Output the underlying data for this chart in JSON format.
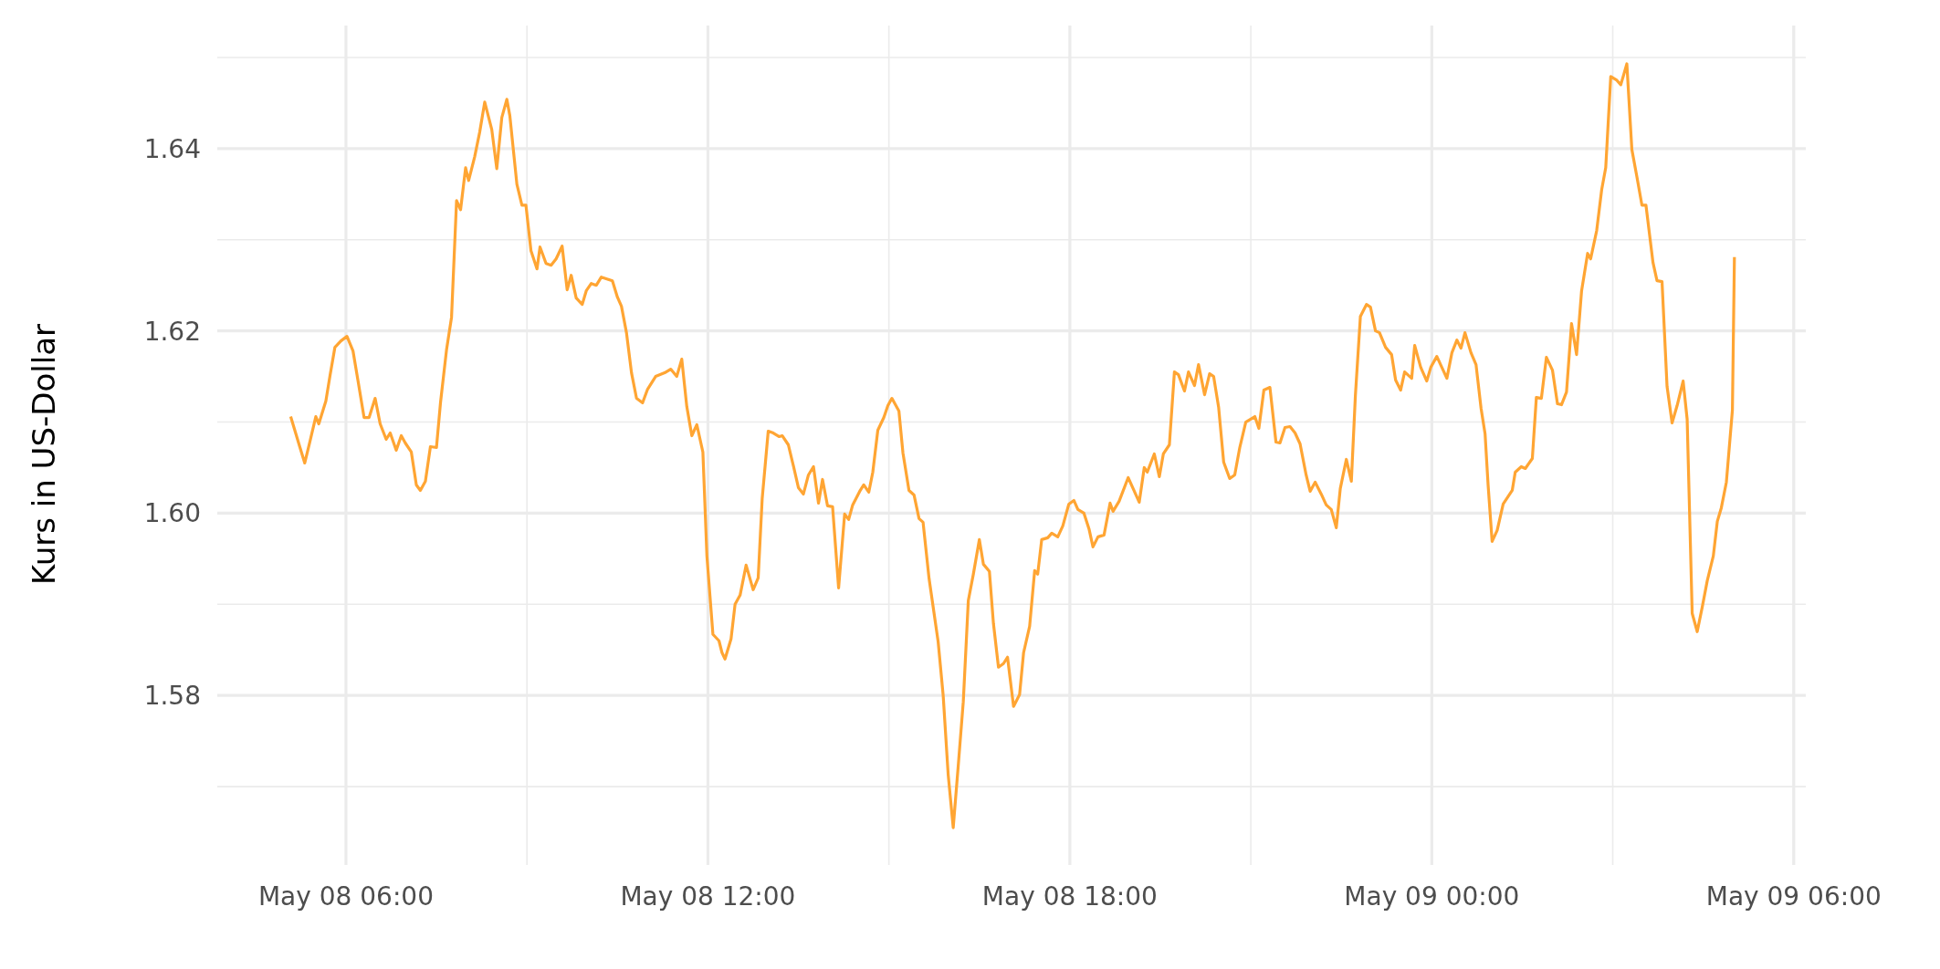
{
  "chart_data": {
    "type": "line",
    "ylabel": "Kurs in US-Dollar",
    "color": "#ffa533",
    "grid": true,
    "xlim": [
      "--05-08T03:52",
      "--05-09T06:12"
    ],
    "ylim": [
      1.5614,
      1.6535
    ],
    "xticks": [
      {
        "value": "--05-08T06:00",
        "label": "May 08 06:00"
      },
      {
        "value": "--05-08T09:00",
        "label": null
      },
      {
        "value": "--05-08T12:00",
        "label": "May 08 12:00"
      },
      {
        "value": "--05-08T15:00",
        "label": null
      },
      {
        "value": "--05-08T18:00",
        "label": "May 08 18:00"
      },
      {
        "value": "--05-08T21:00",
        "label": null
      },
      {
        "value": "--05-09T00:00",
        "label": "May 09 00:00"
      },
      {
        "value": "--05-09T03:00",
        "label": null
      },
      {
        "value": "--05-09T06:00",
        "label": "May 09 06:00"
      }
    ],
    "yticks": [
      {
        "value": 1.57,
        "label": null
      },
      {
        "value": 1.58,
        "label": "1.58"
      },
      {
        "value": 1.59,
        "label": null
      },
      {
        "value": 1.6,
        "label": "1.60"
      },
      {
        "value": 1.61,
        "label": null
      },
      {
        "value": 1.62,
        "label": "1.62"
      },
      {
        "value": 1.63,
        "label": null
      },
      {
        "value": 1.64,
        "label": "1.64"
      },
      {
        "value": 1.65,
        "label": null
      }
    ],
    "x": [
      "--05-08T05:05",
      "--05-08T05:14",
      "--05-08T05:19",
      "--05-08T05:24",
      "--05-08T05:30",
      "--05-08T05:33",
      "--05-08T05:40",
      "--05-08T05:44",
      "--05-08T05:49",
      "--05-08T05:55",
      "--05-08T06:01",
      "--05-08T06:07",
      "--05-08T06:12",
      "--05-08T06:18",
      "--05-08T06:23",
      "--05-08T06:29",
      "--05-08T06:34",
      "--05-08T06:40",
      "--05-08T06:44",
      "--05-08T06:50",
      "--05-08T06:55",
      "--05-08T06:59",
      "--05-08T07:05",
      "--05-08T07:10",
      "--05-08T07:14",
      "--05-08T07:19",
      "--05-08T07:24",
      "--05-08T07:30",
      "--05-08T07:34",
      "--05-08T07:40",
      "--05-08T07:45",
      "--05-08T07:50",
      "--05-08T07:54",
      "--05-08T07:59",
      "--05-08T08:02",
      "--05-08T08:08",
      "--05-08T08:13",
      "--05-08T08:18",
      "--05-08T08:25",
      "--05-08T08:30",
      "--05-08T08:35",
      "--05-08T08:40",
      "--05-08T08:43",
      "--05-08T08:50",
      "--05-08T08:55",
      "--05-08T08:59",
      "--05-08T09:04",
      "--05-08T09:10",
      "--05-08T09:13",
      "--05-08T09:19",
      "--05-08T09:24",
      "--05-08T09:29",
      "--05-08T09:35",
      "--05-08T09:40",
      "--05-08T09:44",
      "--05-08T09:49",
      "--05-08T09:55",
      "--05-08T09:59",
      "--05-08T10:04",
      "--05-08T10:09",
      "--05-08T10:14",
      "--05-08T10:25",
      "--05-08T10:30",
      "--05-08T10:34",
      "--05-08T10:39",
      "--05-08T10:44",
      "--05-08T10:49",
      "--05-08T10:55",
      "--05-08T11:00",
      "--05-08T11:08",
      "--05-08T11:17",
      "--05-08T11:23",
      "--05-08T11:29",
      "--05-08T11:34",
      "--05-08T11:39",
      "--05-08T11:44",
      "--05-08T11:49",
      "--05-08T11:55",
      "--05-08T11:59",
      "--05-08T12:05",
      "--05-08T12:11",
      "--05-08T12:14",
      "--05-08T12:17",
      "--05-08T12:23",
      "--05-08T12:27",
      "--05-08T12:32",
      "--05-08T12:38",
      "--05-08T12:45",
      "--05-08T12:50",
      "--05-08T12:54",
      "--05-08T13:00",
      "--05-08T13:05",
      "--05-08T13:11",
      "--05-08T13:14",
      "--05-08T13:20",
      "--05-08T13:25",
      "--05-08T13:30",
      "--05-08T13:35",
      "--05-08T13:40",
      "--05-08T13:45",
      "--05-08T13:50",
      "--05-08T13:54",
      "--05-08T13:59",
      "--05-08T14:04",
      "--05-08T14:10",
      "--05-08T14:16",
      "--05-08T14:20",
      "--05-08T14:24",
      "--05-08T14:31",
      "--05-08T14:35",
      "--05-08T14:40",
      "--05-08T14:44",
      "--05-08T14:49",
      "--05-08T14:55",
      "--05-08T14:59",
      "--05-08T15:03",
      "--05-08T15:10",
      "--05-08T15:14",
      "--05-08T15:20",
      "--05-08T15:25",
      "--05-08T15:30",
      "--05-08T15:34",
      "--05-08T15:40",
      "--05-08T15:49",
      "--05-08T15:54",
      "--05-08T15:59",
      "--05-08T16:04",
      "--05-08T16:09",
      "--05-08T16:14",
      "--05-08T16:19",
      "--05-08T16:24",
      "--05-08T16:30",
      "--05-08T16:34",
      "--05-08T16:40",
      "--05-08T16:44",
      "--05-08T16:49",
      "--05-08T16:54",
      "--05-08T16:58",
      "--05-08T17:04",
      "--05-08T17:10",
      "--05-08T17:14",
      "--05-08T17:20",
      "--05-08T17:25",
      "--05-08T17:28",
      "--05-08T17:32",
      "--05-08T17:38",
      "--05-08T17:42",
      "--05-08T17:48",
      "--05-08T17:53",
      "--05-08T17:59",
      "--05-08T18:04",
      "--05-08T18:08",
      "--05-08T18:14",
      "--05-08T18:19",
      "--05-08T18:23",
      "--05-08T18:28",
      "--05-08T18:34",
      "--05-08T18:40",
      "--05-08T18:43",
      "--05-08T18:49",
      "--05-08T18:58",
      "--05-08T19:09",
      "--05-08T19:14",
      "--05-08T19:17",
      "--05-08T19:24",
      "--05-08T19:29",
      "--05-08T19:33",
      "--05-08T19:39",
      "--05-08T19:44",
      "--05-08T19:48",
      "--05-08T19:54",
      "--05-08T19:58",
      "--05-08T20:04",
      "--05-08T20:08",
      "--05-08T20:14",
      "--05-08T20:19",
      "--05-08T20:23",
      "--05-08T20:28",
      "--05-08T20:33",
      "--05-08T20:39",
      "--05-08T20:44",
      "--05-08T20:49",
      "--05-08T20:55",
      "--05-08T21:04",
      "--05-08T21:08",
      "--05-08T21:13",
      "--05-08T21:19",
      "--05-08T21:25",
      "--05-08T21:29",
      "--05-08T21:34",
      "--05-08T21:39",
      "--05-08T21:44",
      "--05-08T21:49",
      "--05-08T21:55",
      "--05-08T21:59",
      "--05-08T22:04",
      "--05-08T22:10",
      "--05-08T22:15",
      "--05-08T22:20",
      "--05-08T22:25",
      "--05-08T22:29",
      "--05-08T22:35",
      "--05-08T22:40",
      "--05-08T22:44",
      "--05-08T22:49",
      "--05-08T22:55",
      "--05-08T22:59",
      "--05-08T23:04",
      "--05-08T23:08",
      "--05-08T23:14",
      "--05-08T23:20",
      "--05-08T23:24",
      "--05-08T23:29",
      "--05-08T23:33",
      "--05-08T23:40",
      "--05-08T23:43",
      "--05-08T23:49",
      "--05-08T23:55",
      "--05-08T23:59",
      "--05-09T00:05",
      "--05-09T00:10",
      "--05-09T00:15",
      "--05-09T00:20",
      "--05-09T00:25",
      "--05-09T00:29",
      "--05-09T00:33",
      "--05-09T00:39",
      "--05-09T00:44",
      "--05-09T00:49",
      "--05-09T00:53",
      "--05-09T00:56",
      "--05-09T01:00",
      "--05-09T01:05",
      "--05-09T01:11",
      "--05-09T01:20",
      "--05-09T01:23",
      "--05-09T01:29",
      "--05-09T01:33",
      "--05-09T01:40",
      "--05-09T01:44",
      "--05-09T01:49",
      "--05-09T01:54",
      "--05-09T02:00",
      "--05-09T02:05",
      "--05-09T02:09",
      "--05-09T02:14",
      "--05-09T02:19",
      "--05-09T02:24",
      "--05-09T02:29",
      "--05-09T02:35",
      "--05-09T02:38",
      "--05-09T02:44",
      "--05-09T02:49",
      "--05-09T02:53",
      "--05-09T02:58",
      "--05-09T03:04",
      "--05-09T03:08",
      "--05-09T03:14",
      "--05-09T03:19",
      "--05-09T03:24",
      "--05-09T03:29",
      "--05-09T03:33",
      "--05-09T03:40",
      "--05-09T03:44",
      "--05-09T03:49",
      "--05-09T03:54",
      "--05-09T03:59",
      "--05-09T04:04",
      "--05-09T04:10",
      "--05-09T04:14",
      "--05-09T04:19",
      "--05-09T04:24",
      "--05-09T04:29",
      "--05-09T04:34",
      "--05-09T04:40",
      "--05-09T04:44",
      "--05-09T04:48",
      "--05-09T04:53",
      "--05-09T04:59",
      "--05-09T05:01"
    ],
    "values": [
      1.6106,
      1.6073,
      1.6055,
      1.6078,
      1.6106,
      1.6098,
      1.6123,
      1.615,
      1.6182,
      1.6189,
      1.6194,
      1.6178,
      1.6145,
      1.6105,
      1.6105,
      1.6126,
      1.6098,
      1.6081,
      1.6088,
      1.6069,
      1.6085,
      1.6077,
      1.6067,
      1.6031,
      1.6025,
      1.6035,
      1.6073,
      1.6072,
      1.6121,
      1.6179,
      1.6215,
      1.6343,
      1.6333,
      1.6379,
      1.6365,
      1.6391,
      1.6418,
      1.6451,
      1.6421,
      1.6378,
      1.6434,
      1.6454,
      1.6436,
      1.6361,
      1.6338,
      1.6338,
      1.6288,
      1.6268,
      1.6292,
      1.6274,
      1.6272,
      1.6279,
      1.6293,
      1.6245,
      1.6261,
      1.6236,
      1.6229,
      1.6244,
      1.6252,
      1.625,
      1.6259,
      1.6255,
      1.6237,
      1.6227,
      1.6198,
      1.6154,
      1.6126,
      1.6121,
      1.6136,
      1.615,
      1.6154,
      1.6158,
      1.615,
      1.6169,
      1.6117,
      1.6085,
      1.6097,
      1.6067,
      1.5953,
      1.5867,
      1.586,
      1.5847,
      1.584,
      1.5862,
      1.59,
      1.591,
      1.5943,
      1.5916,
      1.5929,
      1.6016,
      1.609,
      1.6088,
      1.6084,
      1.6085,
      1.6075,
      1.6052,
      1.6028,
      1.6021,
      1.6042,
      1.6051,
      1.6011,
      1.6037,
      1.6008,
      1.6007,
      1.5918,
      1.5999,
      1.5993,
      1.6009,
      1.6024,
      1.6031,
      1.6023,
      1.6045,
      1.6091,
      1.6105,
      1.6118,
      1.6126,
      1.6112,
      1.6066,
      1.6025,
      1.602,
      1.5994,
      1.599,
      1.5928,
      1.5859,
      1.58,
      1.5713,
      1.5655,
      1.5723,
      1.5793,
      1.5904,
      1.5933,
      1.5971,
      1.5944,
      1.5936,
      1.5879,
      1.5831,
      1.5835,
      1.5842,
      1.5788,
      1.5801,
      1.5847,
      1.5876,
      1.5937,
      1.5933,
      1.5971,
      1.5973,
      1.5978,
      1.5974,
      1.5986,
      1.601,
      1.6014,
      1.6004,
      1.6,
      1.5983,
      1.5963,
      1.5974,
      1.5976,
      1.6011,
      1.6002,
      1.6013,
      1.6039,
      1.6012,
      1.605,
      1.6045,
      1.6065,
      1.604,
      1.6065,
      1.6075,
      1.6155,
      1.6152,
      1.6134,
      1.6155,
      1.614,
      1.6163,
      1.613,
      1.6153,
      1.615,
      1.6116,
      1.6056,
      1.6038,
      1.6042,
      1.6072,
      1.61,
      1.6106,
      1.6093,
      1.6135,
      1.6138,
      1.6078,
      1.6077,
      1.6094,
      1.6095,
      1.6088,
      1.6076,
      1.6042,
      1.6024,
      1.6034,
      1.6021,
      1.6009,
      1.6004,
      1.5984,
      1.6027,
      1.6059,
      1.6035,
      1.6129,
      1.6216,
      1.6229,
      1.6226,
      1.62,
      1.6198,
      1.6182,
      1.6174,
      1.6146,
      1.6135,
      1.6155,
      1.6148,
      1.6184,
      1.616,
      1.6145,
      1.616,
      1.6172,
      1.616,
      1.6148,
      1.6176,
      1.619,
      1.6181,
      1.6198,
      1.6176,
      1.6163,
      1.6115,
      1.6087,
      1.6031,
      1.5969,
      1.5981,
      1.601,
      1.6025,
      1.6045,
      1.6051,
      1.6049,
      1.606,
      1.6127,
      1.6126,
      1.6171,
      1.6157,
      1.612,
      1.6119,
      1.6133,
      1.6208,
      1.6174,
      1.6244,
      1.6285,
      1.6279,
      1.631,
      1.6355,
      1.6379,
      1.6479,
      1.6475,
      1.647,
      1.6493,
      1.6399,
      1.6369,
      1.6338,
      1.6338,
      1.6275,
      1.6255,
      1.6254,
      1.6139,
      1.6099,
      1.6118,
      1.6145,
      1.6103,
      1.589,
      1.587,
      1.5897,
      1.5926,
      1.5953,
      1.5991,
      1.6006,
      1.6034,
      1.6113,
      1.6281
    ],
    "line_style": "solid"
  }
}
